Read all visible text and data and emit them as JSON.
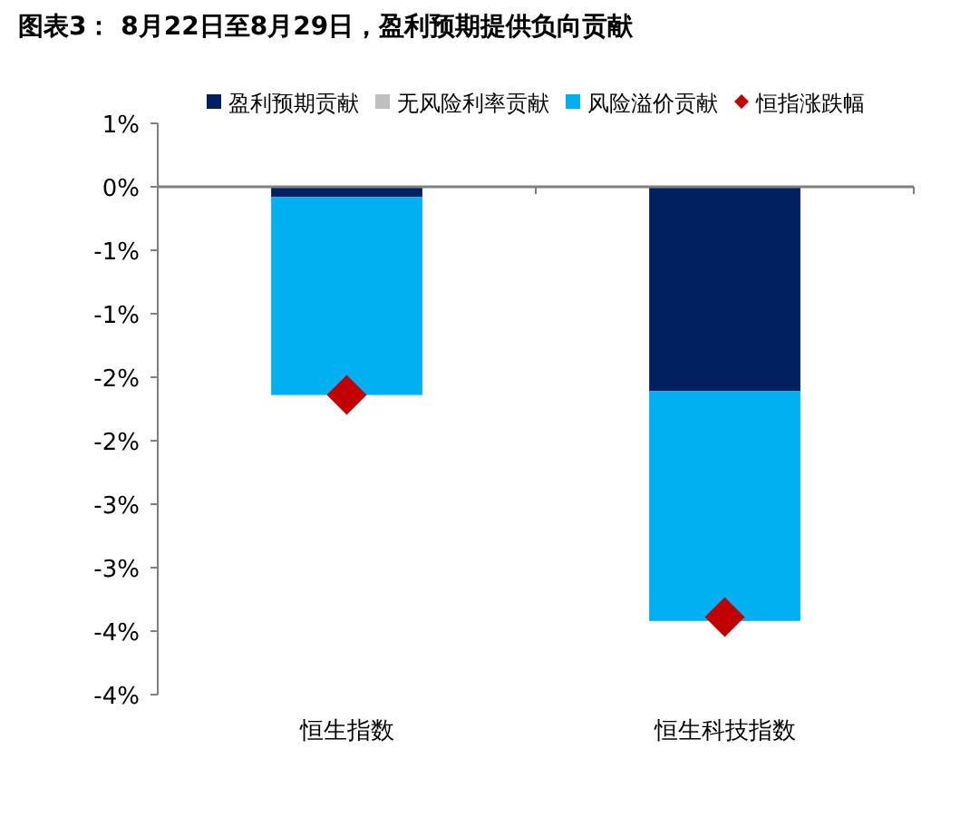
{
  "chart_data": {
    "type": "bar",
    "title": "图表3： 8月22日至8月29日，盈利预期提供负向贡献",
    "categories": [
      "恒生指数",
      "恒生科技指数"
    ],
    "stacked": true,
    "legend": "top",
    "ylim": [
      -4.0,
      0.5
    ],
    "yticks": [
      {
        "value": 0.5,
        "label": "1%"
      },
      {
        "value": 0,
        "label": "0%"
      },
      {
        "value": -0.5,
        "label": "-1%"
      },
      {
        "value": -1,
        "label": "-1%"
      },
      {
        "value": -1.5,
        "label": "-2%"
      },
      {
        "value": -2,
        "label": "-2%"
      },
      {
        "value": -2.5,
        "label": "-3%"
      },
      {
        "value": -3,
        "label": "-3%"
      },
      {
        "value": -3.5,
        "label": "-4%"
      },
      {
        "value": -4,
        "label": "-4%"
      }
    ],
    "series": [
      {
        "name": "盈利预期贡献",
        "color": "#002060",
        "values": [
          -0.08,
          -1.61
        ]
      },
      {
        "name": "无风险利率贡献",
        "color": "#bfbfbf",
        "values": [
          0,
          0
        ]
      },
      {
        "name": "风险溢价贡献",
        "color": "#00b0f0",
        "values": [
          -1.56,
          -1.81
        ]
      },
      {
        "name": "恒指涨跌幅",
        "type": "scatter",
        "marker": "diamond",
        "color": "#c00000",
        "x": [
          "恒生指数",
          "恒生科技指数"
        ],
        "values": [
          -1.64,
          -3.39
        ]
      }
    ]
  }
}
